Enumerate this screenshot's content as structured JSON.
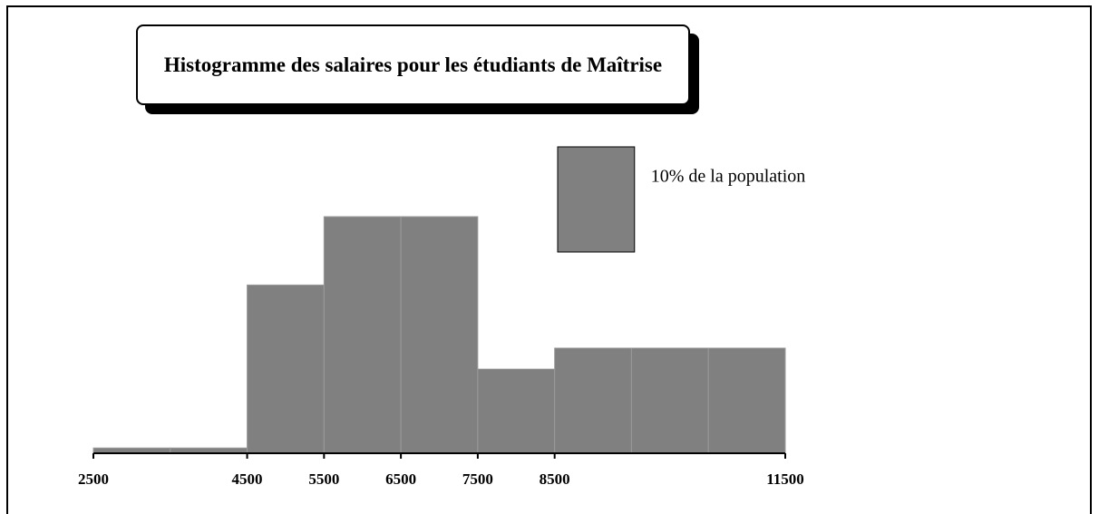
{
  "chart_data": {
    "type": "histogram",
    "title": "Histogramme des salaires pour les étudiants de Maîtrise",
    "bins": [
      2500,
      3500,
      4500,
      5500,
      6500,
      7500,
      8500,
      9500,
      10500,
      11500
    ],
    "values": [
      0.5,
      0.5,
      16,
      22.5,
      22.5,
      8,
      10,
      10,
      10
    ],
    "color": "#808080",
    "xlim": [
      2500,
      11500
    ],
    "xticks": [
      2500,
      4500,
      5500,
      6500,
      7500,
      8500,
      11500
    ],
    "ylim": [
      0,
      30
    ],
    "legend": {
      "label": "10% de la population",
      "value": 10,
      "width": 1000
    }
  }
}
